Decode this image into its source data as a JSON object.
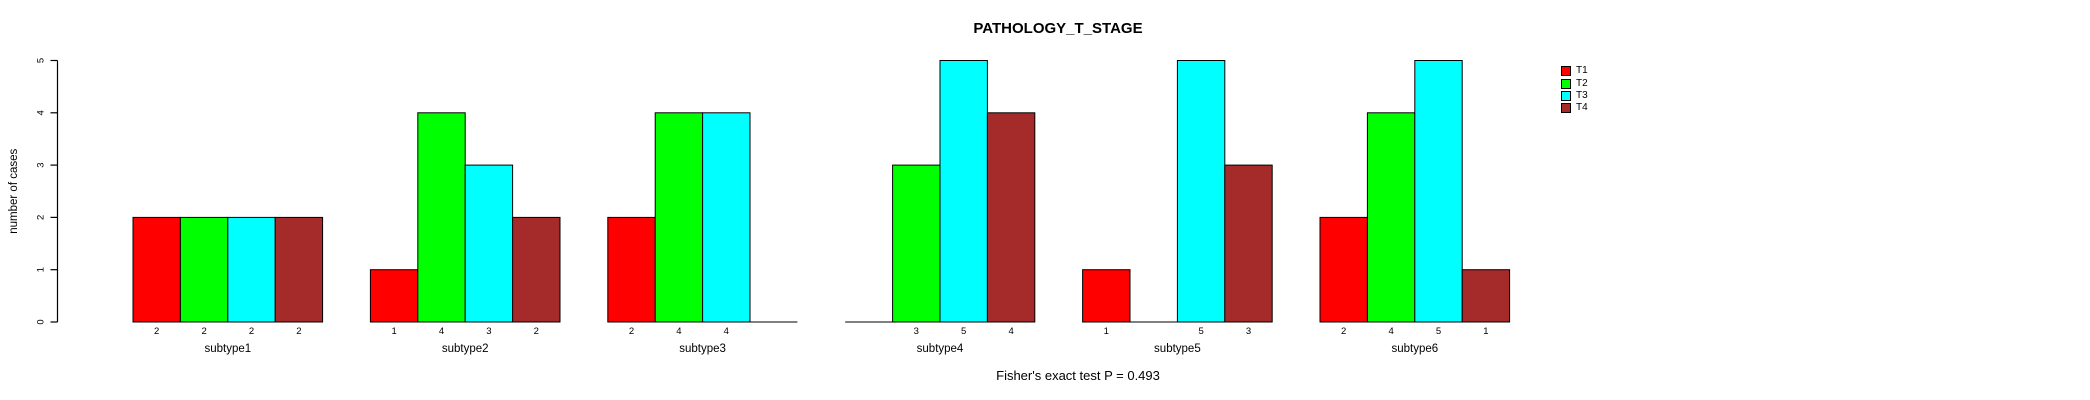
{
  "figure": {
    "background": "#FFFFFF",
    "axis_color": "#000000",
    "text_color": "#000000"
  },
  "chart_data": {
    "type": "bar",
    "title": "PATHOLOGY_T_STAGE",
    "ylabel": "number of cases",
    "xlabel": "",
    "ylim": [
      0,
      5
    ],
    "yticks": [
      0,
      1,
      2,
      3,
      4,
      5
    ],
    "grid": false,
    "legend_position": "top-right",
    "bar_value_labels": "value printed under each bar when value > 0",
    "categories": [
      "subtype1",
      "subtype2",
      "subtype3",
      "subtype4",
      "subtype5",
      "subtype6"
    ],
    "series": [
      {
        "name": "T1",
        "color": "#FF0000",
        "values": [
          2,
          1,
          2,
          0,
          1,
          2
        ]
      },
      {
        "name": "T2",
        "color": "#00FF00",
        "values": [
          2,
          4,
          4,
          3,
          0,
          4
        ]
      },
      {
        "name": "T3",
        "color": "#00FFFF",
        "values": [
          2,
          3,
          4,
          5,
          5,
          5
        ]
      },
      {
        "name": "T4",
        "color": "#A52A2A",
        "values": [
          2,
          2,
          0,
          4,
          3,
          1
        ]
      }
    ],
    "annotation": "Fisher's exact test P = 0.493"
  }
}
